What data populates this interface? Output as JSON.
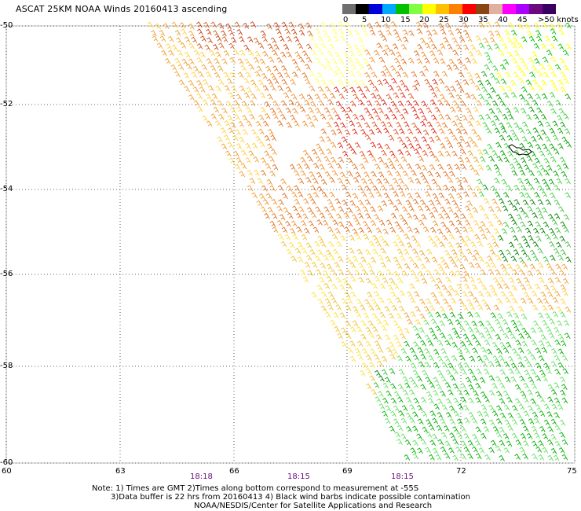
{
  "title": "ASCAT 25KM NOAA Winds 20160413 ascending",
  "legend": {
    "colors": [
      "#6f6f6f",
      "#000000",
      "#0000d8",
      "#00a8ff",
      "#00c000",
      "#80ff40",
      "#ffff00",
      "#ffc000",
      "#ff7f00",
      "#ff0000",
      "#8b4513",
      "#e0b0a0",
      "#ff00ff",
      "#aa00ff",
      "#6a0a7e",
      "#3a0060"
    ],
    "labels": [
      "0",
      "5",
      "10",
      "15",
      "20",
      "25",
      "30",
      "35",
      "40",
      "45",
      ">50 knots"
    ]
  },
  "lat_labels": [
    "-50",
    "-52",
    "-54",
    "-56",
    "-58",
    "-60"
  ],
  "lon_labels": [
    "60",
    "63",
    "66",
    "69",
    "72",
    "75"
  ],
  "time_labels": [
    "18:18",
    "18:15",
    "18:15"
  ],
  "notes": [
    "Note: 1) Times are GMT 2)Times along bottom correspond to measurement at -55S",
    "3)Data buffer is 22 hrs from 20160413 4) Black wind barbs indicate possible contamination",
    "NOAA/NESDIS/Center for Satellite Applications and Research"
  ]
}
